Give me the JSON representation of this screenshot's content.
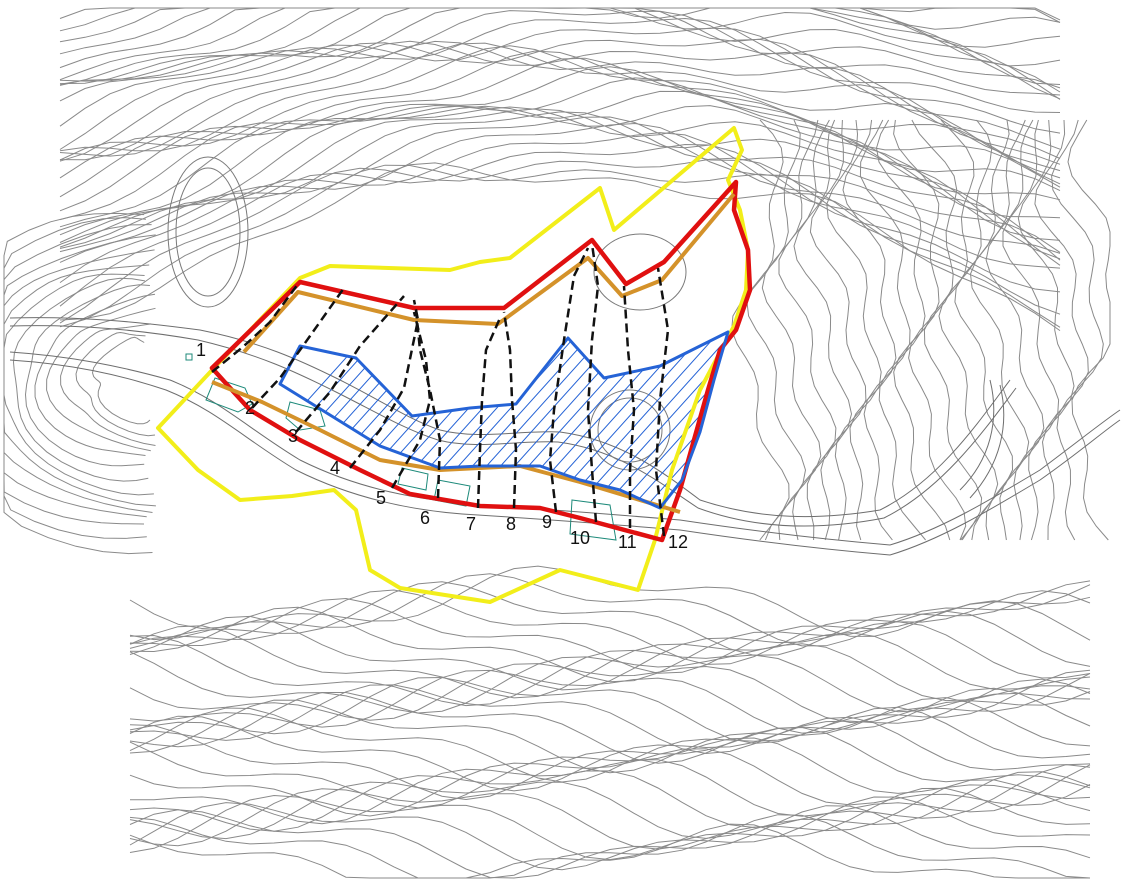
{
  "map": {
    "section_labels": [
      "1",
      "2",
      "3",
      "4",
      "5",
      "6",
      "7",
      "8",
      "9",
      "10",
      "11",
      "12"
    ]
  },
  "colors": {
    "boundary_yellow": "#f2ee1a",
    "boundary_red": "#e01010",
    "line_orange": "#d4922a",
    "line_blue": "#2563d6",
    "contour_grey": "#8a8a8a",
    "building_teal": "#1d8a7a"
  }
}
